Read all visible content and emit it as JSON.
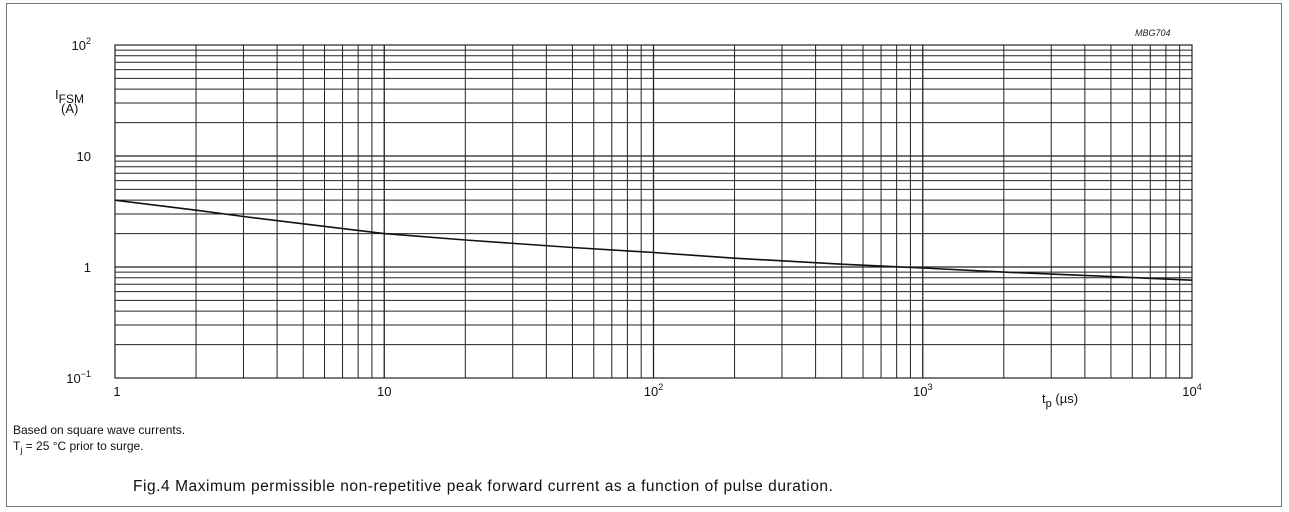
{
  "figure": {
    "id_label": "MBG704",
    "notes": [
      "Based on square wave currents.",
      "T",
      "j",
      " = 25 °C prior to surge."
    ],
    "caption": "Fig.4  Maximum permissible non-repetitive peak forward current as a function of pulse duration."
  },
  "axes_text": {
    "y_symbol_main": "I",
    "y_symbol_sub": "FSM",
    "y_unit": "(A)",
    "x_symbol_main": "t",
    "x_symbol_sub": "p",
    "x_unit": "(µs)"
  },
  "chart_data": {
    "type": "line",
    "x_scale": "log",
    "y_scale": "log",
    "xlim": [
      1,
      10000
    ],
    "ylim": [
      0.1,
      100
    ],
    "grid": true,
    "x_ticks": [
      {
        "base": "1",
        "exp": ""
      },
      {
        "base": "10",
        "exp": ""
      },
      {
        "base": "10",
        "exp": "2"
      },
      {
        "base": "10",
        "exp": "3"
      },
      {
        "base": "10",
        "exp": "4"
      }
    ],
    "y_ticks": [
      {
        "base": "10",
        "exp": "−1"
      },
      {
        "base": "1",
        "exp": ""
      },
      {
        "base": "10",
        "exp": ""
      },
      {
        "base": "10",
        "exp": "2"
      }
    ],
    "series": [
      {
        "x": [
          1,
          2,
          3,
          5,
          10,
          20,
          50,
          100,
          200,
          500,
          1000,
          2000,
          5000,
          10000
        ],
        "y": [
          4.0,
          3.25,
          2.85,
          2.45,
          2.0,
          1.75,
          1.5,
          1.35,
          1.2,
          1.06,
          0.98,
          0.9,
          0.82,
          0.76
        ]
      }
    ]
  }
}
